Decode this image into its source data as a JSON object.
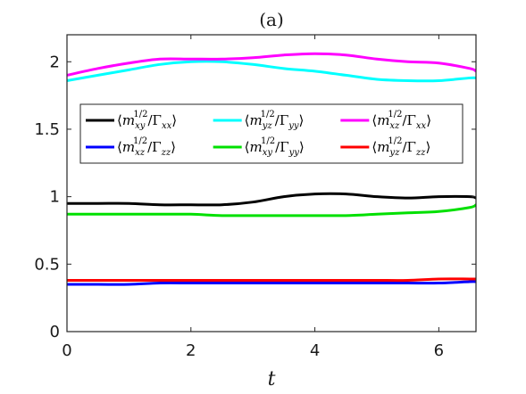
{
  "chart_data": {
    "type": "line",
    "title": "(a)",
    "xlabel": "t",
    "ylabel": "",
    "xlim": [
      0,
      6.6
    ],
    "ylim": [
      0,
      2.2
    ],
    "xticks": [
      0,
      2,
      4,
      6
    ],
    "xtick_labels": [
      "0",
      "2",
      "4",
      "6"
    ],
    "yticks": [
      0,
      0.5,
      1,
      1.5,
      2
    ],
    "ytick_labels": [
      "0",
      "0.5",
      "1",
      "1.5",
      "2"
    ],
    "grid": false,
    "legend_position": "upper-middle",
    "x": [
      0,
      0.5,
      1,
      1.5,
      2,
      2.5,
      3,
      3.5,
      4,
      4.5,
      5,
      5.5,
      6,
      6.5,
      6.6
    ],
    "series": [
      {
        "name": "⟨m_xy^{1/2}/Γ_xx⟩",
        "legend": {
          "m_sub": "xy",
          "g_sub": "xx"
        },
        "color": "#000000",
        "values": [
          0.95,
          0.95,
          0.95,
          0.94,
          0.94,
          0.94,
          0.96,
          1.0,
          1.02,
          1.02,
          1.0,
          0.99,
          1.0,
          1.0,
          0.99
        ]
      },
      {
        "name": "⟨m_yz^{1/2}/Γ_yy⟩",
        "legend": {
          "m_sub": "yz",
          "g_sub": "yy"
        },
        "color": "#00FFFF",
        "values": [
          1.86,
          1.9,
          1.94,
          1.98,
          2.0,
          2.0,
          1.98,
          1.95,
          1.93,
          1.9,
          1.87,
          1.86,
          1.86,
          1.88,
          1.88
        ]
      },
      {
        "name": "⟨m_xz^{1/2}/Γ_xx⟩",
        "legend": {
          "m_sub": "xz",
          "g_sub": "xx"
        },
        "color": "#FF00FF",
        "values": [
          1.9,
          1.95,
          1.99,
          2.02,
          2.02,
          2.02,
          2.03,
          2.05,
          2.06,
          2.05,
          2.02,
          2.0,
          1.99,
          1.95,
          1.93
        ]
      },
      {
        "name": "⟨m_xz^{1/2}/Γ_zz⟩",
        "legend": {
          "m_sub": "xz",
          "g_sub": "zz"
        },
        "color": "#0000FF",
        "values": [
          0.35,
          0.35,
          0.35,
          0.36,
          0.36,
          0.36,
          0.36,
          0.36,
          0.36,
          0.36,
          0.36,
          0.36,
          0.36,
          0.37,
          0.37
        ]
      },
      {
        "name": "⟨m_xy^{1/2}/Γ_yy⟩",
        "legend": {
          "m_sub": "xy",
          "g_sub": "yy"
        },
        "color": "#00E000",
        "values": [
          0.87,
          0.87,
          0.87,
          0.87,
          0.87,
          0.86,
          0.86,
          0.86,
          0.86,
          0.86,
          0.87,
          0.88,
          0.89,
          0.92,
          0.94
        ]
      },
      {
        "name": "⟨m_yz^{1/2}/Γ_zz⟩",
        "legend": {
          "m_sub": "yz",
          "g_sub": "zz"
        },
        "color": "#FF0000",
        "values": [
          0.38,
          0.38,
          0.38,
          0.38,
          0.38,
          0.38,
          0.38,
          0.38,
          0.38,
          0.38,
          0.38,
          0.38,
          0.39,
          0.39,
          0.39
        ]
      }
    ]
  }
}
